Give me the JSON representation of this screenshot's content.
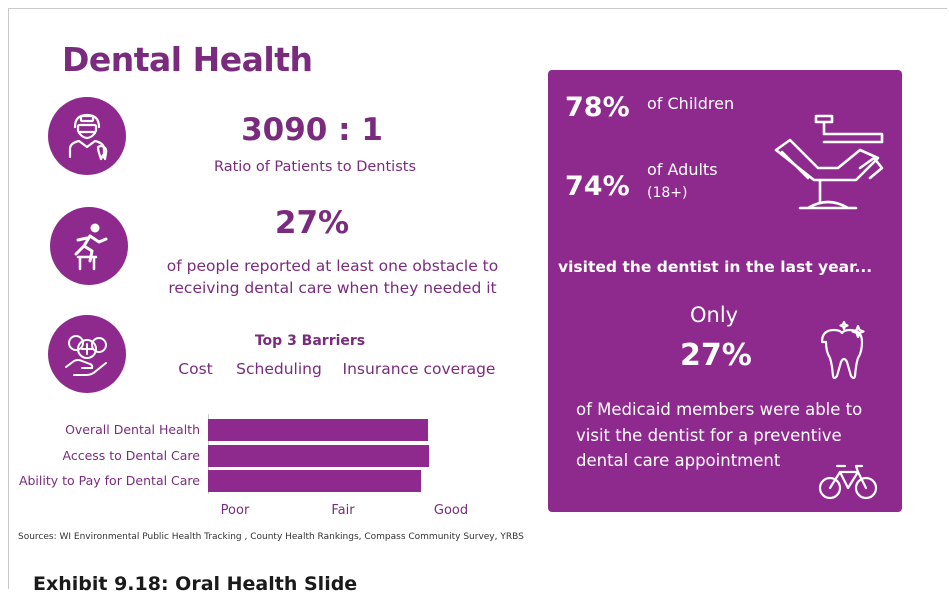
{
  "title": "Dental Health",
  "stats": {
    "ratio_value": "3090 : 1",
    "ratio_label": "Ratio of Patients to Dentists",
    "obstacle_value": "27%",
    "obstacle_text_line1": "of people reported at least one obstacle to",
    "obstacle_text_line2": "receiving dental care when they needed it"
  },
  "barriers": {
    "heading": "Top 3 Barriers",
    "items": [
      "Cost",
      "Scheduling",
      "Insurance coverage"
    ]
  },
  "chart_data": {
    "type": "bar",
    "orientation": "horizontal",
    "categories": [
      "Overall Dental Health",
      "Access to Dental Care",
      "Ability to Pay for Dental Care"
    ],
    "values": [
      2.79,
      2.8,
      2.72
    ],
    "x_tick_labels": [
      "Poor",
      "Fair",
      "Good"
    ],
    "x_tick_values": [
      1,
      2,
      3
    ],
    "xlim": [
      0.75,
      3.25
    ],
    "color": "#8e2a8e"
  },
  "panel": {
    "children_pct": "78%",
    "children_label": "of Children",
    "adults_pct": "74%",
    "adults_label": "of Adults",
    "adults_sub": "(18+)",
    "visited_text": "visited the dentist in the last year...",
    "only_label": "Only",
    "medicaid_pct": "27%",
    "medicaid_line1": "of Medicaid members were able to",
    "medicaid_line2": "visit the dentist for a preventive",
    "medicaid_line3": "dental care appointment"
  },
  "sources": "Sources: WI Environmental Public Health Tracking , County Health Rankings, Compass Community Survey, YRBS",
  "caption": "Exhibit 9.18: Oral Health Slide",
  "icons": [
    "dentist-icon",
    "hurdle-runner-icon",
    "money-hand-icon",
    "dental-chair-icon",
    "tooth-icon",
    "bicycle-icon"
  ],
  "colors": {
    "brand": "#8e2a8e",
    "text": "#7a2b7e"
  }
}
